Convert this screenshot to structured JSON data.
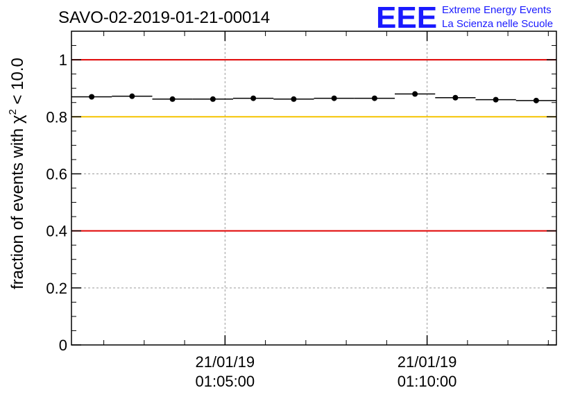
{
  "chart_data": {
    "type": "scatter",
    "title": "SAVO-02-2019-01-21-00014",
    "ylabel_prefix": "fraction of events with χ",
    "ylabel_sup": "2",
    "ylabel_suffix": " < 10.0",
    "xlabel": "",
    "xlim_minutes": [
      0,
      12.0
    ],
    "ylim": [
      0,
      1.1
    ],
    "yticks": [
      0,
      0.2,
      0.4,
      0.6,
      0.8,
      1
    ],
    "ytick_labels": [
      "0",
      "0.2",
      "0.4",
      "0.6",
      "0.8",
      "1"
    ],
    "xticks": [
      {
        "minute": 3.8,
        "date": "21/01/19",
        "time": "01:05:00"
      },
      {
        "minute": 8.8,
        "date": "21/01/19",
        "time": "01:10:00"
      }
    ],
    "grid": true,
    "reference_lines": [
      {
        "y": 1.0,
        "color": "#e00000"
      },
      {
        "y": 0.8,
        "color": "#f5c400"
      },
      {
        "y": 0.4,
        "color": "#e00000"
      }
    ],
    "series": [
      {
        "name": "fraction",
        "bin_width_minutes": 1.0,
        "x_minutes": [
          0.5,
          1.5,
          2.5,
          3.5,
          4.5,
          5.5,
          6.5,
          7.5,
          8.5,
          9.5,
          10.5,
          11.5
        ],
        "values": [
          0.87,
          0.872,
          0.862,
          0.862,
          0.865,
          0.862,
          0.865,
          0.865,
          0.88,
          0.867,
          0.86,
          0.857
        ]
      }
    ]
  },
  "logo": {
    "mark": "EEE",
    "line1": "Extreme Energy Events",
    "line2": "La Scienza nelle Scuole",
    "color": "#1a1aff"
  }
}
